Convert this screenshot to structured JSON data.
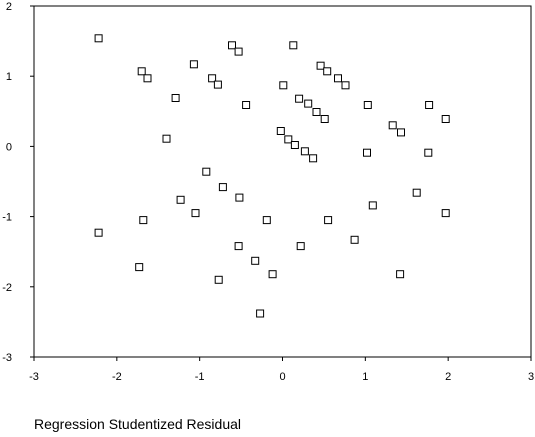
{
  "chart_data": {
    "type": "scatter",
    "xlabel": "Regression Studentized Residual",
    "ylabel": "",
    "xlim": [
      -3,
      3
    ],
    "ylim": [
      -3,
      2
    ],
    "xticks": [
      "-3",
      "-2",
      "-1",
      "0",
      "1",
      "2",
      "3"
    ],
    "yticks": [
      "2",
      "1",
      "0",
      "-1",
      "-2",
      "-3"
    ],
    "grid": false,
    "marker": "open-square",
    "points": [
      {
        "x": -2.22,
        "y": 1.54
      },
      {
        "x": -2.22,
        "y": -1.23
      },
      {
        "x": -1.73,
        "y": -1.72
      },
      {
        "x": -1.7,
        "y": 1.07
      },
      {
        "x": -1.68,
        "y": -1.05
      },
      {
        "x": -1.63,
        "y": 0.97
      },
      {
        "x": -1.4,
        "y": 0.11
      },
      {
        "x": -1.29,
        "y": 0.69
      },
      {
        "x": -1.23,
        "y": -0.76
      },
      {
        "x": -1.07,
        "y": 1.17
      },
      {
        "x": -1.05,
        "y": -0.95
      },
      {
        "x": -0.92,
        "y": -0.36
      },
      {
        "x": -0.85,
        "y": 0.97
      },
      {
        "x": -0.78,
        "y": 0.88
      },
      {
        "x": -0.77,
        "y": -1.9
      },
      {
        "x": -0.72,
        "y": -0.58
      },
      {
        "x": -0.61,
        "y": 1.44
      },
      {
        "x": -0.53,
        "y": 1.35
      },
      {
        "x": -0.52,
        "y": -0.73
      },
      {
        "x": -0.53,
        "y": -1.42
      },
      {
        "x": -0.44,
        "y": 0.59
      },
      {
        "x": -0.33,
        "y": -1.63
      },
      {
        "x": -0.27,
        "y": -2.38
      },
      {
        "x": -0.19,
        "y": -1.05
      },
      {
        "x": -0.12,
        "y": -1.82
      },
      {
        "x": -0.02,
        "y": 0.22
      },
      {
        "x": 0.01,
        "y": 0.87
      },
      {
        "x": 0.07,
        "y": 0.1
      },
      {
        "x": 0.13,
        "y": 1.44
      },
      {
        "x": 0.15,
        "y": 0.02
      },
      {
        "x": 0.2,
        "y": 0.68
      },
      {
        "x": 0.22,
        "y": -1.42
      },
      {
        "x": 0.27,
        "y": -0.07
      },
      {
        "x": 0.31,
        "y": 0.61
      },
      {
        "x": 0.37,
        "y": -0.17
      },
      {
        "x": 0.41,
        "y": 0.49
      },
      {
        "x": 0.46,
        "y": 1.15
      },
      {
        "x": 0.51,
        "y": 0.39
      },
      {
        "x": 0.54,
        "y": 1.07
      },
      {
        "x": 0.55,
        "y": -1.05
      },
      {
        "x": 0.67,
        "y": 0.97
      },
      {
        "x": 0.76,
        "y": 0.87
      },
      {
        "x": 0.87,
        "y": -1.33
      },
      {
        "x": 1.03,
        "y": 0.59
      },
      {
        "x": 1.02,
        "y": -0.09
      },
      {
        "x": 1.09,
        "y": -0.84
      },
      {
        "x": 1.33,
        "y": 0.3
      },
      {
        "x": 1.43,
        "y": 0.2
      },
      {
        "x": 1.42,
        "y": -1.82
      },
      {
        "x": 1.62,
        "y": -0.66
      },
      {
        "x": 1.77,
        "y": 0.59
      },
      {
        "x": 1.76,
        "y": -0.09
      },
      {
        "x": 1.97,
        "y": 0.39
      },
      {
        "x": 1.97,
        "y": -0.95
      }
    ]
  }
}
